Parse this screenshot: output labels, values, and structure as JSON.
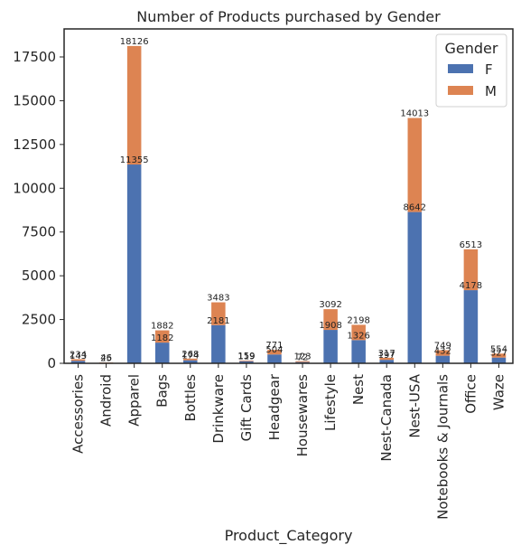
{
  "chart_data": {
    "type": "bar",
    "stacked": true,
    "title": "Number of Products purchased by Gender",
    "xlabel": "Product_Category",
    "ylabel": "",
    "ylim": [
      0,
      19100
    ],
    "yticks": [
      0,
      2500,
      5000,
      7500,
      10000,
      12500,
      15000,
      17500
    ],
    "grid": false,
    "legend": {
      "title": "Gender",
      "placement": "top-right"
    },
    "categories": [
      "Accessories",
      "Android",
      "Apparel",
      "Bags",
      "Bottles",
      "Drinkware",
      "Gift Cards",
      "Headgear",
      "Housewares",
      "Lifestyle",
      "Nest",
      "Nest-Canada",
      "Nest-USA",
      "Notebooks & Journals",
      "Office",
      "Waze"
    ],
    "series": [
      {
        "name": "F",
        "color": "#4c72b0",
        "values": [
          143,
          25,
          11355,
          1182,
          174,
          2181,
          119,
          504,
          72,
          1908,
          1326,
          197,
          8642,
          432,
          4178,
          327
        ]
      },
      {
        "name": "M",
        "color": "#dd8452",
        "values": [
          91,
          21,
          6771,
          700,
          94,
          1302,
          40,
          267,
          51,
          1184,
          872,
          120,
          5371,
          317,
          2335,
          227
        ]
      }
    ],
    "data_labels": {
      "F": [
        "143",
        "25",
        "11355",
        "1182",
        "174",
        "2181",
        "119",
        "504",
        "72",
        "1908",
        "1326",
        "197",
        "8642",
        "432",
        "4178",
        "327"
      ],
      "total": [
        "234",
        "46",
        "18126",
        "1882",
        "268",
        "3483",
        "159",
        "771",
        "123",
        "3092",
        "2198",
        "317",
        "14013",
        "749",
        "6513",
        "554"
      ]
    }
  }
}
